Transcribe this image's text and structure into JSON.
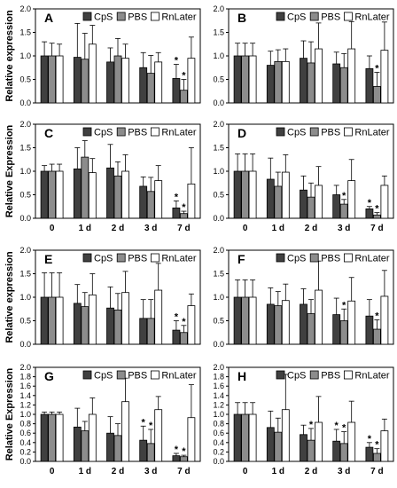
{
  "colors": {
    "CpS": "#404040",
    "PBS": "#8c8c8c",
    "RnLater": "#ffffff",
    "border": "#000000"
  },
  "chart_data": [
    {
      "panel": "A",
      "type": "bar",
      "ylabel": "Relative expression",
      "categories": [
        "0",
        "1 d",
        "2 d",
        "3 d",
        "7 d"
      ],
      "ylim": [
        0,
        2
      ],
      "yticks": [
        "0.0",
        "0.5",
        "1.0",
        "1.5",
        "2.0"
      ],
      "series": [
        {
          "name": "CpS",
          "values": [
            1.0,
            0.97,
            0.87,
            0.75,
            0.52
          ],
          "errors": [
            0.3,
            0.72,
            0.3,
            0.32,
            0.3
          ],
          "stars": [
            false,
            false,
            false,
            false,
            true
          ]
        },
        {
          "name": "PBS",
          "values": [
            1.0,
            0.93,
            1.0,
            0.63,
            0.27
          ],
          "errors": [
            0.27,
            0.55,
            0.37,
            0.38,
            0.23
          ],
          "stars": [
            false,
            false,
            false,
            false,
            true
          ]
        },
        {
          "name": "RnLater",
          "values": [
            1.0,
            1.25,
            0.95,
            0.87,
            0.95
          ],
          "errors": [
            0.25,
            0.4,
            0.3,
            0.2,
            0.45
          ],
          "stars": [
            false,
            false,
            false,
            false,
            false
          ]
        }
      ]
    },
    {
      "panel": "B",
      "type": "bar",
      "ylabel": "",
      "categories": [
        "0",
        "1 d",
        "2 d",
        "3 d",
        "7 d"
      ],
      "ylim": [
        0,
        2
      ],
      "yticks": [
        "0.0",
        "0.5",
        "1.0",
        "1.5",
        "2.0"
      ],
      "series": [
        {
          "name": "CpS",
          "values": [
            1.0,
            0.8,
            0.95,
            0.83,
            0.73
          ],
          "errors": [
            0.27,
            0.3,
            0.37,
            0.25,
            0.27
          ],
          "stars": [
            false,
            false,
            false,
            false,
            false
          ]
        },
        {
          "name": "PBS",
          "values": [
            1.0,
            0.88,
            0.85,
            0.75,
            0.35
          ],
          "errors": [
            0.27,
            0.25,
            0.45,
            0.3,
            0.3
          ],
          "stars": [
            false,
            false,
            false,
            false,
            true
          ]
        },
        {
          "name": "RnLater",
          "values": [
            1.0,
            0.88,
            1.15,
            1.15,
            1.12
          ],
          "errors": [
            0.27,
            0.27,
            0.55,
            0.58,
            0.6
          ],
          "stars": [
            false,
            false,
            false,
            false,
            false
          ]
        }
      ]
    },
    {
      "panel": "C",
      "type": "bar",
      "ylabel": "Relative Expression",
      "categories": [
        "0",
        "1 d",
        "2 d",
        "3 d",
        "7 d"
      ],
      "ylim": [
        0,
        2
      ],
      "yticks": [
        "0.0",
        "0.5",
        "1.0",
        "1.5",
        "2.0"
      ],
      "series": [
        {
          "name": "CpS",
          "values": [
            1.0,
            1.05,
            1.07,
            0.68,
            0.22
          ],
          "errors": [
            0.12,
            0.45,
            0.5,
            0.2,
            0.15
          ],
          "stars": [
            false,
            false,
            false,
            false,
            true
          ]
        },
        {
          "name": "PBS",
          "values": [
            1.0,
            1.3,
            0.9,
            0.57,
            0.1
          ],
          "errors": [
            0.15,
            0.35,
            0.3,
            0.3,
            0.05
          ],
          "stars": [
            false,
            false,
            false,
            false,
            true
          ]
        },
        {
          "name": "RnLater",
          "values": [
            1.0,
            0.97,
            1.0,
            0.8,
            0.73
          ],
          "errors": [
            0.15,
            0.3,
            0.35,
            0.32,
            0.77
          ],
          "stars": [
            false,
            false,
            false,
            false,
            false
          ]
        }
      ]
    },
    {
      "panel": "D",
      "type": "bar",
      "ylabel": "",
      "categories": [
        "0",
        "1 d",
        "2 d",
        "3 d",
        "7 d"
      ],
      "ylim": [
        0,
        2
      ],
      "yticks": [
        "0.0",
        "0.5",
        "1.0",
        "1.5",
        "2.0"
      ],
      "series": [
        {
          "name": "CpS",
          "values": [
            1.0,
            0.83,
            0.6,
            0.5,
            0.2
          ],
          "errors": [
            0.37,
            0.45,
            0.3,
            0.2,
            0.05
          ],
          "stars": [
            false,
            false,
            false,
            false,
            true
          ]
        },
        {
          "name": "PBS",
          "values": [
            1.0,
            0.68,
            0.45,
            0.3,
            0.07
          ],
          "errors": [
            0.37,
            0.3,
            0.3,
            0.1,
            0.05
          ],
          "stars": [
            false,
            false,
            false,
            true,
            true
          ]
        },
        {
          "name": "RnLater",
          "values": [
            1.0,
            0.98,
            0.7,
            0.8,
            0.7
          ],
          "errors": [
            0.37,
            0.37,
            0.4,
            0.45,
            0.2
          ],
          "stars": [
            false,
            false,
            false,
            false,
            false
          ]
        }
      ]
    },
    {
      "panel": "E",
      "type": "bar",
      "ylabel": "Relative expression",
      "categories": [
        "0",
        "1 d",
        "2 d",
        "3 d",
        "7 d"
      ],
      "ylim": [
        0,
        2
      ],
      "yticks": [
        "0.0",
        "0.5",
        "1.0",
        "1.5",
        "2.0"
      ],
      "series": [
        {
          "name": "CpS",
          "values": [
            1.0,
            0.87,
            0.77,
            0.55,
            0.3
          ],
          "errors": [
            0.52,
            0.4,
            0.45,
            0.4,
            0.2
          ],
          "stars": [
            false,
            false,
            false,
            false,
            true
          ]
        },
        {
          "name": "PBS",
          "values": [
            1.0,
            0.8,
            0.73,
            0.55,
            0.25
          ],
          "errors": [
            0.52,
            0.3,
            0.35,
            0.4,
            0.15
          ],
          "stars": [
            false,
            false,
            false,
            false,
            true
          ]
        },
        {
          "name": "RnLater",
          "values": [
            1.0,
            1.05,
            1.1,
            1.15,
            0.82
          ],
          "errors": [
            0.52,
            0.45,
            0.45,
            0.57,
            0.25
          ],
          "stars": [
            false,
            false,
            false,
            false,
            false
          ]
        }
      ]
    },
    {
      "panel": "F",
      "type": "bar",
      "ylabel": "",
      "categories": [
        "0",
        "1 d",
        "2 d",
        "3 d",
        "7 d"
      ],
      "ylim": [
        0,
        2
      ],
      "yticks": [
        "0.0",
        "0.5",
        "1.0",
        "1.5",
        "2.0"
      ],
      "series": [
        {
          "name": "CpS",
          "values": [
            1.0,
            0.85,
            0.85,
            0.63,
            0.6
          ],
          "errors": [
            0.37,
            0.35,
            0.33,
            0.35,
            0.35
          ],
          "stars": [
            false,
            false,
            false,
            false,
            false
          ]
        },
        {
          "name": "PBS",
          "values": [
            1.0,
            0.82,
            0.65,
            0.5,
            0.32
          ],
          "errors": [
            0.37,
            0.3,
            0.3,
            0.25,
            0.2
          ],
          "stars": [
            false,
            false,
            false,
            true,
            true
          ]
        },
        {
          "name": "RnLater",
          "values": [
            1.0,
            0.93,
            1.15,
            0.92,
            1.02
          ],
          "errors": [
            0.37,
            0.35,
            0.62,
            0.5,
            0.55
          ],
          "stars": [
            false,
            false,
            false,
            false,
            false
          ]
        }
      ]
    },
    {
      "panel": "G",
      "type": "bar",
      "ylabel": "Relative Expression",
      "categories": [
        "0",
        "1 d",
        "2 d",
        "3 d",
        "7 d"
      ],
      "ylim": [
        0,
        2
      ],
      "yticks": [
        "0.0",
        "0.2",
        "0.4",
        "0.6",
        "0.8",
        "1.0",
        "1.2",
        "1.4",
        "1.6",
        "1.8",
        "2.0"
      ],
      "series": [
        {
          "name": "CpS",
          "values": [
            1.0,
            0.73,
            0.6,
            0.45,
            0.12
          ],
          "errors": [
            0.05,
            0.4,
            0.35,
            0.3,
            0.05
          ],
          "stars": [
            false,
            false,
            false,
            true,
            true
          ]
        },
        {
          "name": "PBS",
          "values": [
            1.0,
            0.65,
            0.55,
            0.38,
            0.1
          ],
          "errors": [
            0.05,
            0.2,
            0.25,
            0.3,
            0.03
          ],
          "stars": [
            false,
            false,
            false,
            true,
            true
          ]
        },
        {
          "name": "RnLater",
          "values": [
            1.0,
            1.0,
            1.27,
            1.1,
            0.93
          ],
          "errors": [
            0.05,
            0.35,
            0.5,
            0.28,
            0.7
          ],
          "stars": [
            false,
            false,
            false,
            false,
            false
          ]
        }
      ]
    },
    {
      "panel": "H",
      "type": "bar",
      "ylabel": "",
      "categories": [
        "0",
        "1 d",
        "2 d",
        "3 d",
        "7 d"
      ],
      "ylim": [
        0,
        2
      ],
      "yticks": [
        "0.0",
        "0.2",
        "0.4",
        "0.6",
        "0.8",
        "1.0",
        "1.2",
        "1.4",
        "1.6",
        "1.8",
        "2.0"
      ],
      "series": [
        {
          "name": "CpS",
          "values": [
            1.0,
            0.72,
            0.57,
            0.43,
            0.3
          ],
          "errors": [
            0.25,
            0.35,
            0.2,
            0.25,
            0.1
          ],
          "stars": [
            false,
            false,
            false,
            true,
            true
          ]
        },
        {
          "name": "PBS",
          "values": [
            1.0,
            0.62,
            0.45,
            0.38,
            0.17
          ],
          "errors": [
            0.25,
            0.3,
            0.25,
            0.25,
            0.1
          ],
          "stars": [
            false,
            false,
            true,
            true,
            true
          ]
        },
        {
          "name": "RnLater",
          "values": [
            1.0,
            1.1,
            0.83,
            0.83,
            0.65
          ],
          "errors": [
            0.25,
            0.75,
            0.55,
            0.45,
            0.25
          ],
          "stars": [
            false,
            false,
            false,
            false,
            false
          ]
        }
      ]
    }
  ]
}
